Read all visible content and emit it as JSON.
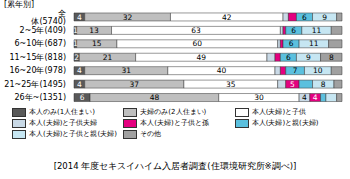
{
  "chart_data": {
    "type": "bar",
    "orientation": "horizontal",
    "stacked": true,
    "tick_labels": "y",
    "title": "[2014 年度セキスイハイム入居者調査(住環境研究所※調べ)]",
    "subtitle": "[累年別]",
    "legend": "bottom",
    "categories": [
      "全 体(5740)",
      "2~5年(409)",
      "6~10年(687)",
      "11~15年(818)",
      "16~20年(978)",
      "21~25年(1495)",
      "26年~(1351)"
    ],
    "series": [
      {
        "name": "本人のみ(1人住まい)",
        "color": "#595959",
        "values": [
          4,
          1,
          1,
          2,
          4,
          4,
          6
        ],
        "value_labels": [
          "4",
          "1",
          "1",
          "2",
          "4",
          "4",
          "6"
        ]
      },
      {
        "name": "夫婦のみ(2人住まい)",
        "color": "#bfbfbf",
        "values": [
          32,
          13,
          15,
          21,
          31,
          37,
          48
        ],
        "value_labels": [
          "32",
          "13",
          "15",
          "21",
          "31",
          "37",
          "48"
        ]
      },
      {
        "name": "本人(夫婦)と子供",
        "color": "#ffffff",
        "values": [
          42,
          63,
          60,
          49,
          40,
          35,
          30
        ],
        "value_labels": [
          "42",
          "63",
          "60",
          "49",
          "40",
          "35",
          "30"
        ]
      },
      {
        "name": "本人(夫婦)と子供夫婦",
        "color": "#c9d9e6",
        "values": [
          2,
          1,
          1,
          3,
          2,
          3,
          4
        ],
        "value_labels": [
          null,
          null,
          null,
          null,
          null,
          null,
          "4"
        ]
      },
      {
        "name": "本人(夫婦)と子供と孫",
        "color": "#e4007f",
        "values": [
          3,
          1,
          1,
          2,
          2,
          5,
          4
        ],
        "value_labels": [
          null,
          null,
          null,
          null,
          null,
          "5",
          "4"
        ]
      },
      {
        "name": "本人(夫婦)と親(夫婦)",
        "color": "#5bc0de",
        "values": [
          6,
          6,
          6,
          6,
          7,
          5,
          2
        ],
        "value_labels": [
          "6",
          "6",
          "6",
          "6",
          "7",
          null,
          null
        ]
      },
      {
        "name": "本人(夫婦)と子供と親(夫婦)",
        "color": "#c6e6f2",
        "values": [
          9,
          11,
          11,
          9,
          10,
          8,
          4
        ],
        "value_labels": [
          "9",
          "11",
          "11",
          "9",
          "10",
          "8",
          null
        ]
      },
      {
        "name": "その他",
        "color": "#a0a0a0",
        "values": [
          2,
          4,
          5,
          8,
          4,
          3,
          2
        ],
        "value_labels": [
          null,
          null,
          null,
          "8",
          null,
          null,
          null
        ]
      }
    ]
  }
}
